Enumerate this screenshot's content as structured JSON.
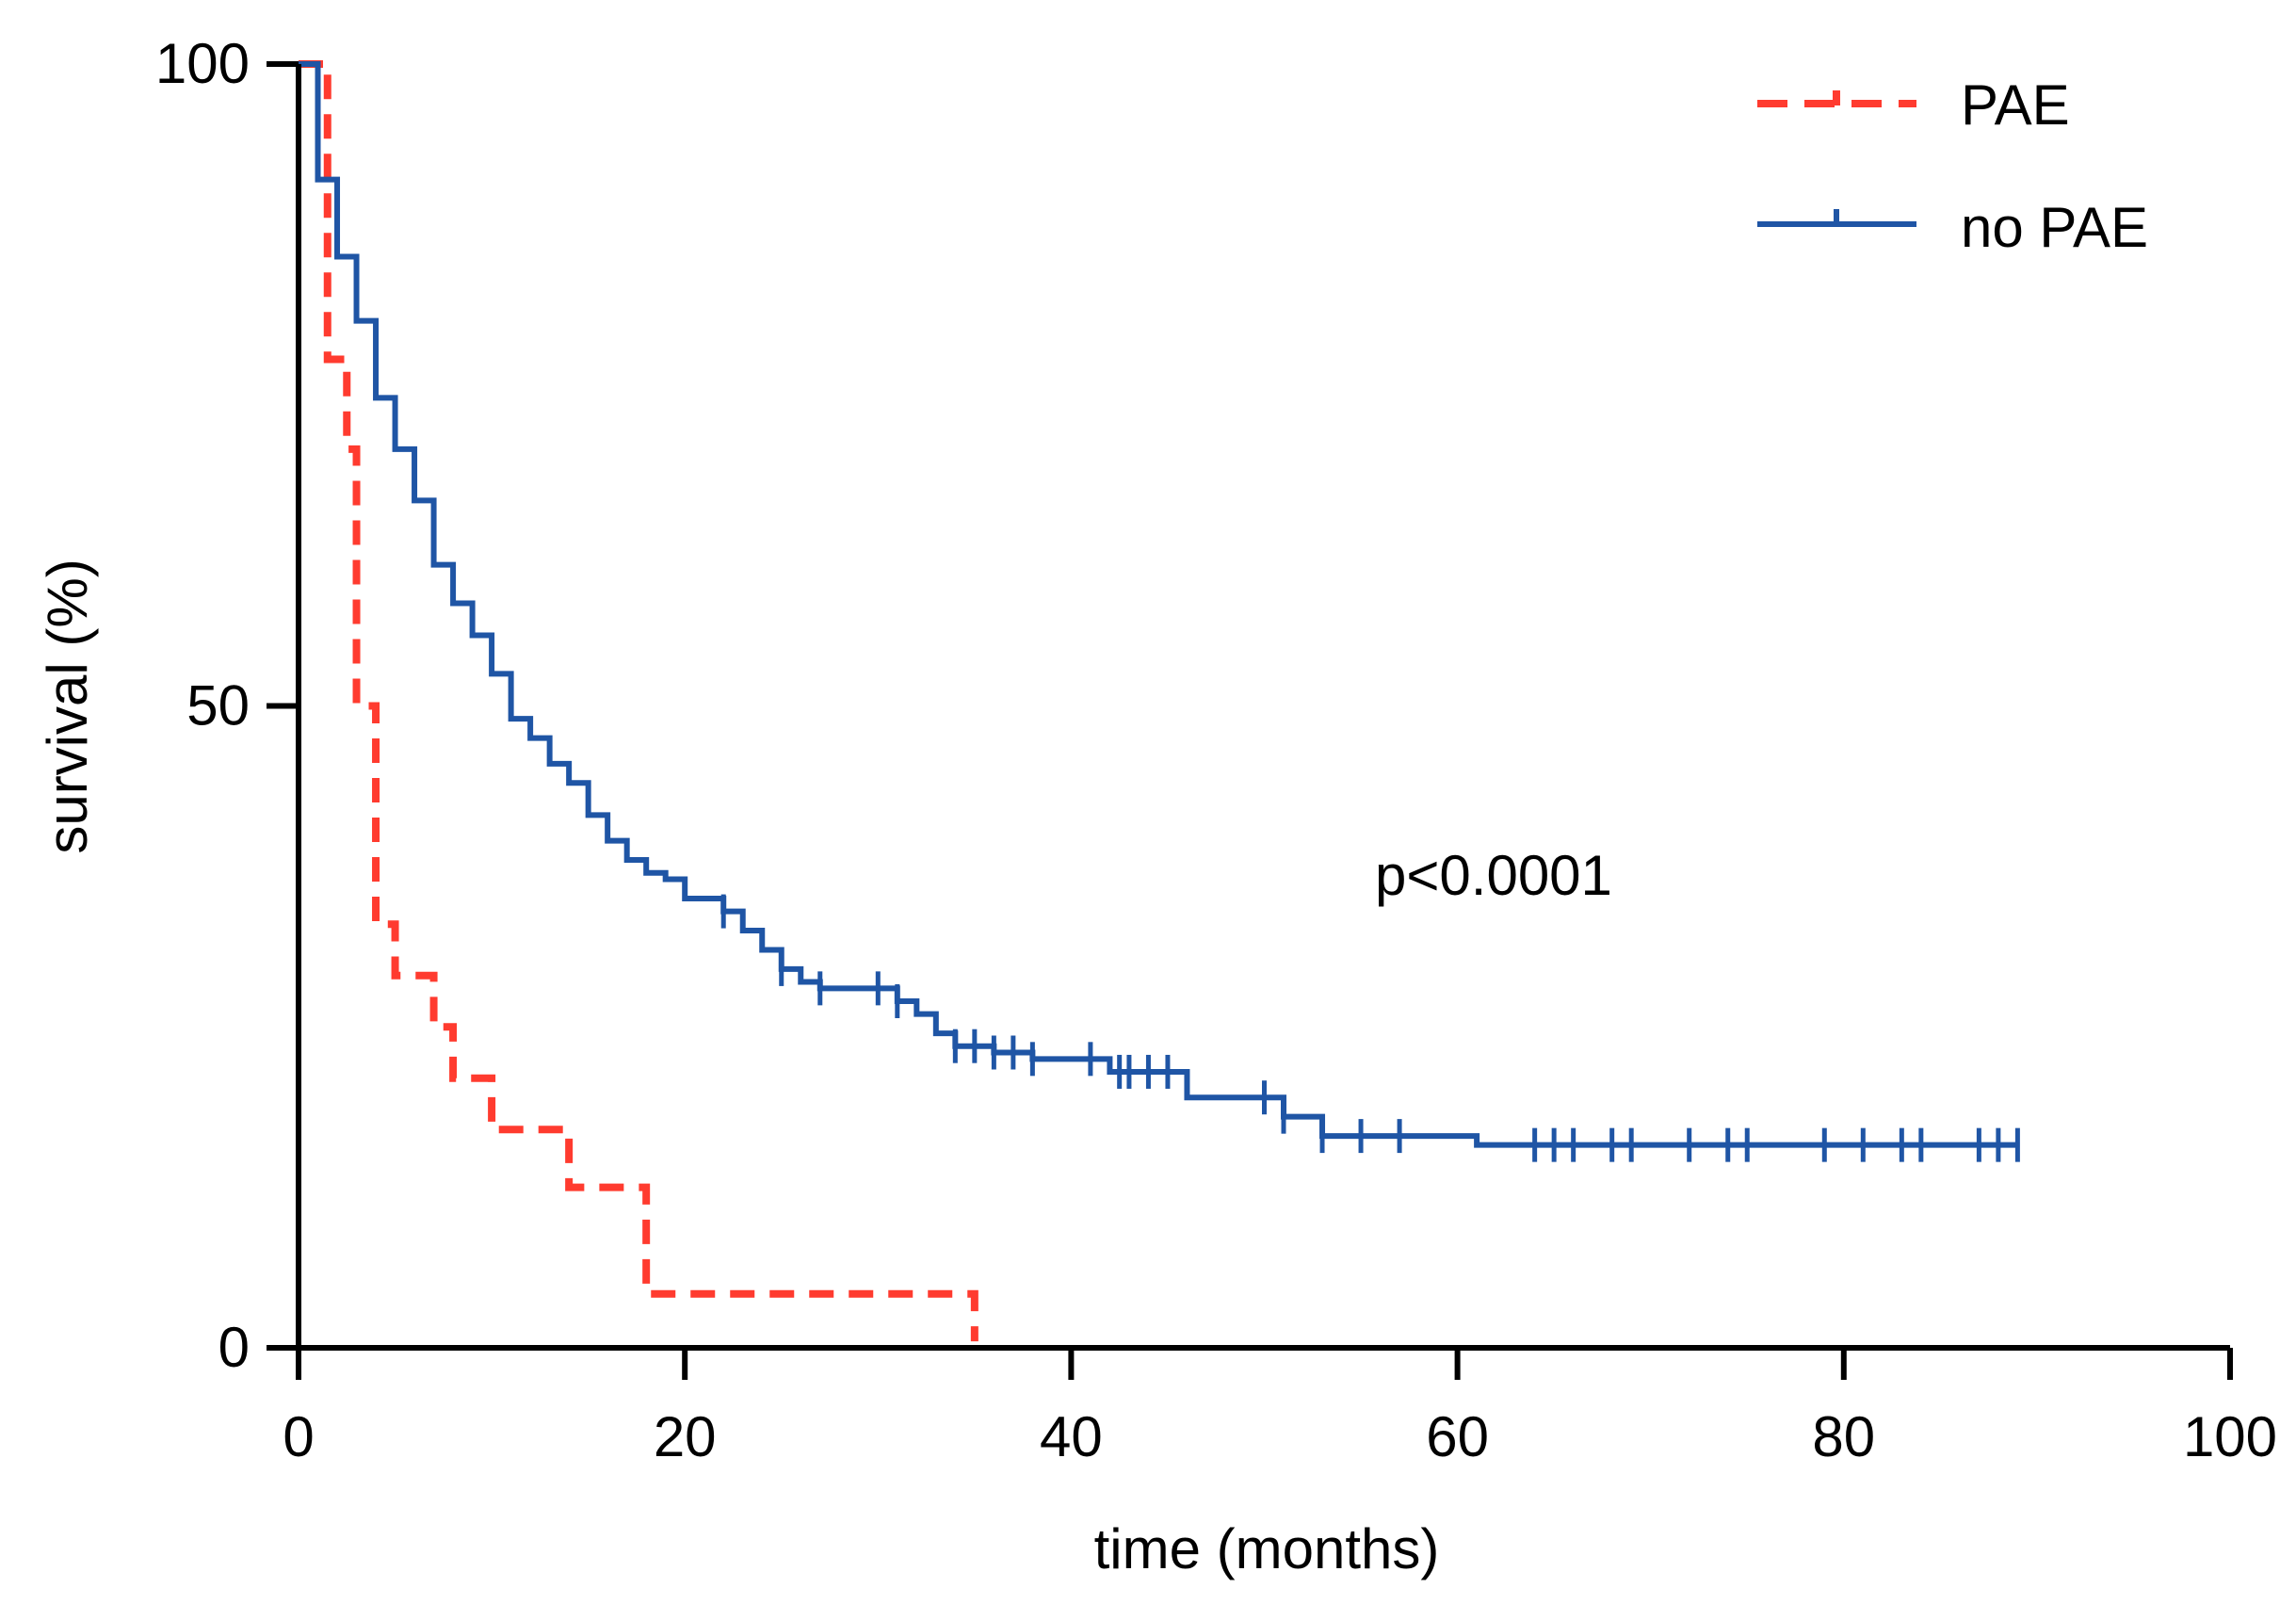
{
  "chart_data": {
    "type": "line",
    "subtype": "kaplan-meier-survival",
    "title": "",
    "xlabel": "time (months)",
    "ylabel": "survival (%)",
    "xlim": [
      0,
      100
    ],
    "ylim": [
      0,
      100
    ],
    "xticks": [
      0,
      20,
      40,
      60,
      80,
      100
    ],
    "yticks": [
      0,
      50,
      100
    ],
    "grid": false,
    "legend_position": "top-right",
    "annotation": "p<0.0001",
    "series": [
      {
        "name": "PAE",
        "color": "#ff3b2f",
        "style": "dashed",
        "steps": [
          [
            0,
            100
          ],
          [
            0.5,
            100
          ],
          [
            1,
            100
          ],
          [
            1.5,
            77
          ],
          [
            2,
            77
          ],
          [
            2.5,
            70
          ],
          [
            3,
            50
          ],
          [
            4,
            33
          ],
          [
            5,
            29
          ],
          [
            7,
            25
          ],
          [
            8,
            21
          ],
          [
            10,
            17
          ],
          [
            14,
            12.5
          ],
          [
            17,
            12.5
          ],
          [
            18,
            4.2
          ],
          [
            35,
            4.2
          ],
          [
            35,
            0.5
          ]
        ],
        "censored": []
      },
      {
        "name": "no PAE",
        "color": "#1f55a5",
        "style": "solid",
        "steps": [
          [
            0,
            100
          ],
          [
            1,
            100
          ],
          [
            1,
            91
          ],
          [
            2,
            85
          ],
          [
            3,
            80
          ],
          [
            4,
            74
          ],
          [
            5,
            70
          ],
          [
            6,
            66
          ],
          [
            7,
            61
          ],
          [
            8,
            58
          ],
          [
            9,
            55.5
          ],
          [
            10,
            52.5
          ],
          [
            11,
            49
          ],
          [
            12,
            47.5
          ],
          [
            13,
            45.5
          ],
          [
            14,
            44
          ],
          [
            15,
            41.5
          ],
          [
            16,
            39.5
          ],
          [
            17,
            38
          ],
          [
            18,
            37
          ],
          [
            19,
            36.5
          ],
          [
            20,
            35
          ],
          [
            22,
            34
          ],
          [
            23,
            32.5
          ],
          [
            24,
            31
          ],
          [
            25,
            29.5
          ],
          [
            26,
            28.5
          ],
          [
            27,
            28
          ],
          [
            30,
            28
          ],
          [
            31,
            27
          ],
          [
            32,
            26
          ],
          [
            33,
            24.5
          ],
          [
            34,
            23.5
          ],
          [
            36,
            23
          ],
          [
            38,
            22.5
          ],
          [
            42,
            21.5
          ],
          [
            46,
            19.5
          ],
          [
            51,
            18
          ],
          [
            53,
            16.5
          ],
          [
            61,
            15.8
          ],
          [
            89,
            15.8
          ]
        ],
        "censored": [
          22,
          25,
          27,
          30,
          31,
          34,
          35,
          36,
          37,
          38,
          41,
          42.5,
          43,
          44,
          45,
          50,
          51,
          53,
          55,
          57,
          64,
          65,
          66,
          68,
          69,
          72,
          74,
          75,
          79,
          81,
          83,
          84,
          87,
          88,
          89
        ]
      }
    ]
  }
}
